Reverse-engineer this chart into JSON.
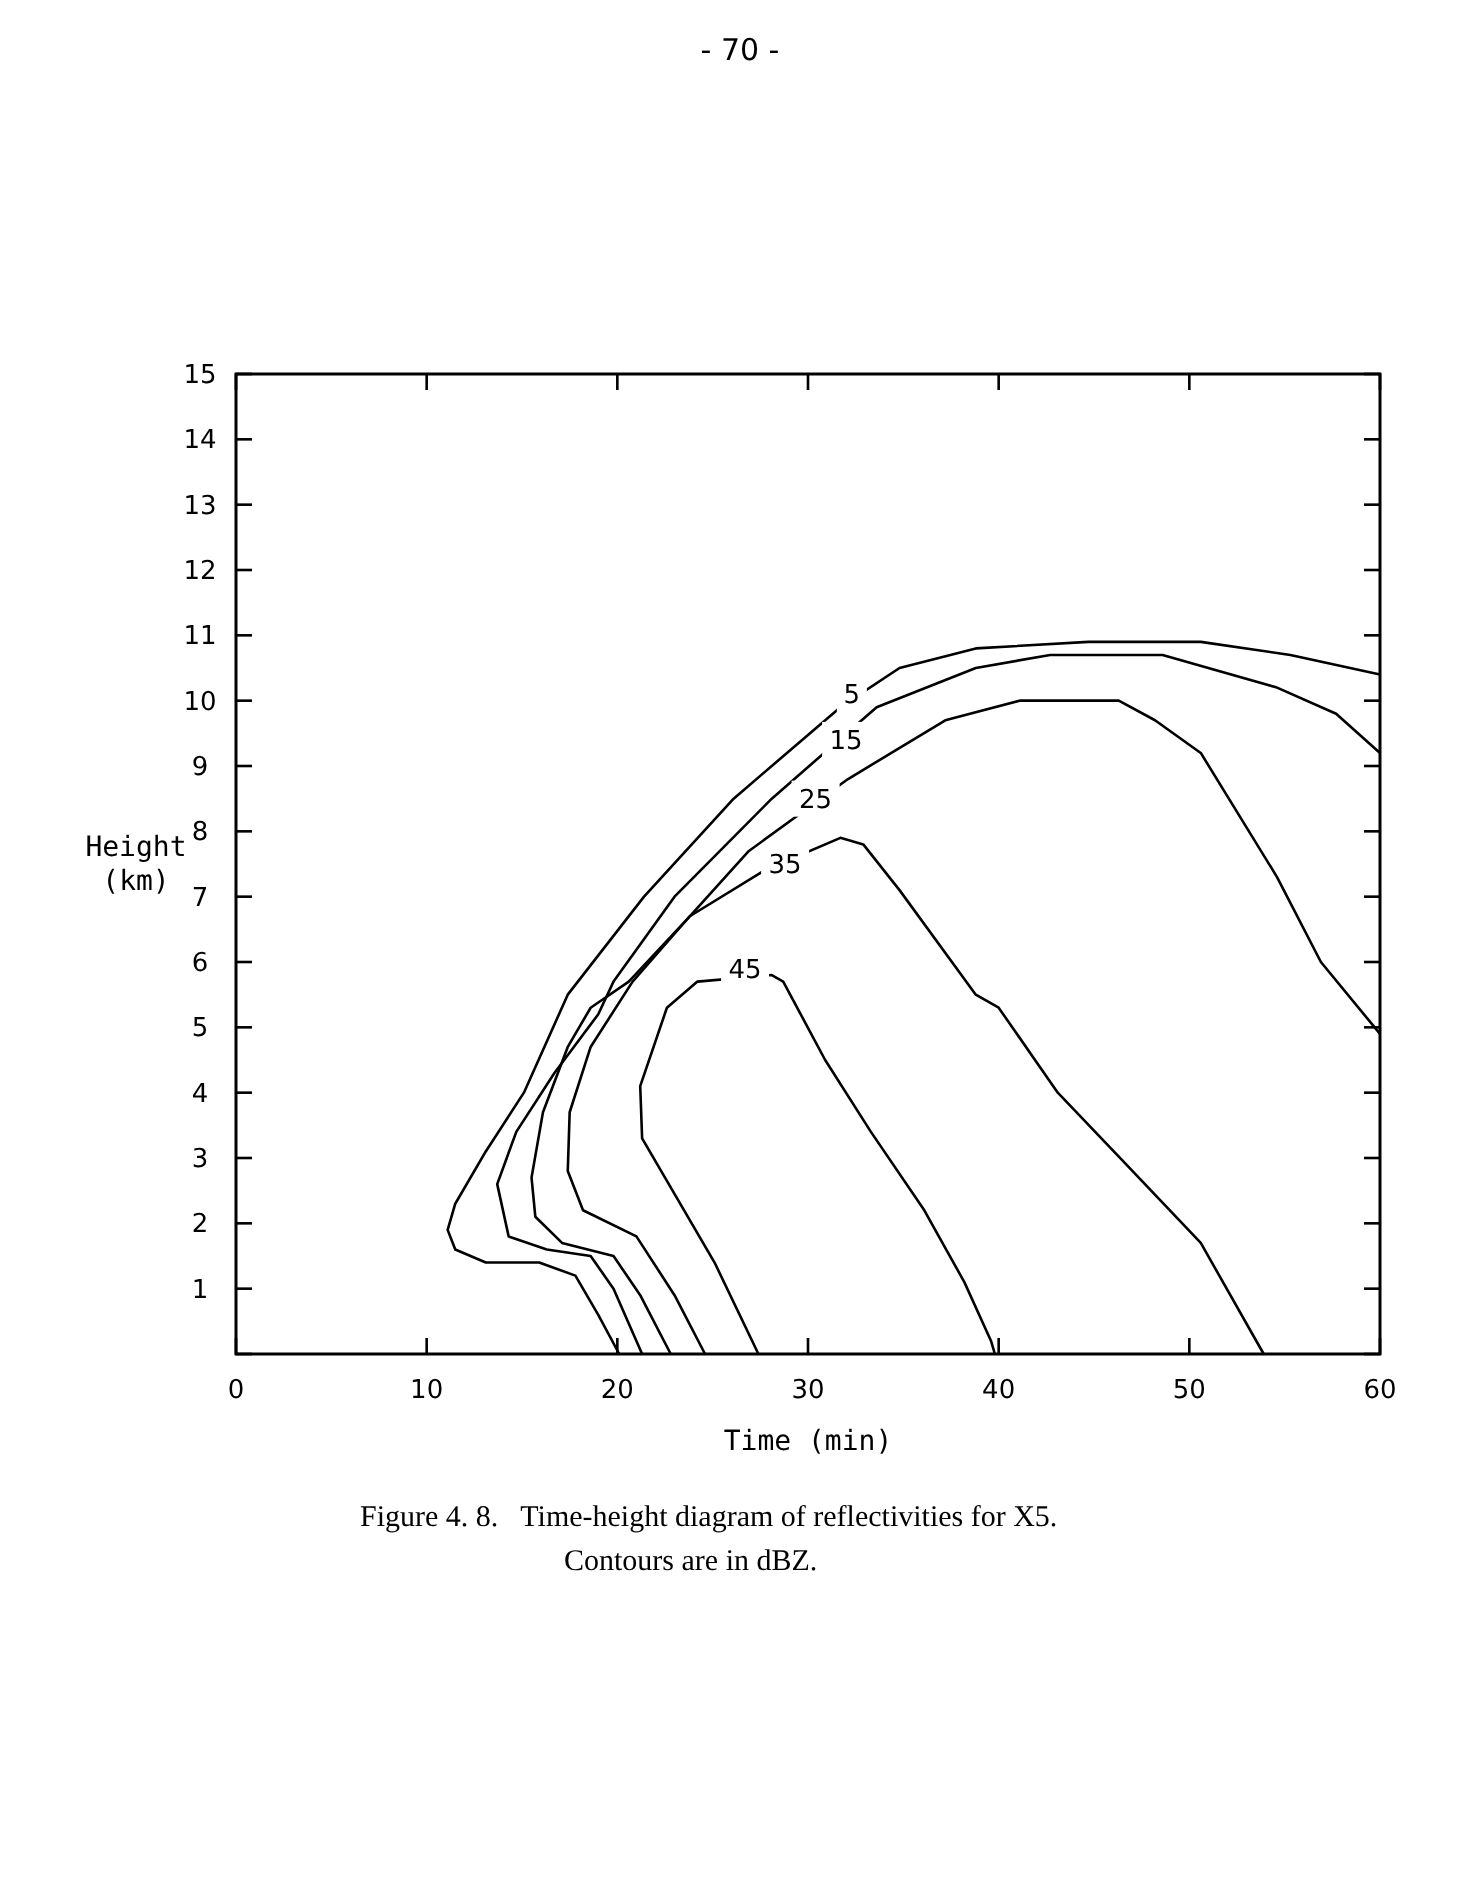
{
  "chart_data": {
    "type": "line",
    "xlabel": "Time (min)",
    "ylabel": "Height (km)",
    "xlim": [
      0,
      60
    ],
    "ylim": [
      0,
      15
    ],
    "xticks": [
      0,
      10,
      20,
      30,
      40,
      50,
      60
    ],
    "yticks": [
      {
        "value": 0,
        "label": null
      },
      1,
      2,
      3,
      4,
      5,
      6,
      7,
      8,
      9,
      10,
      11,
      12,
      13,
      14,
      15
    ],
    "grid": false,
    "marker": "none",
    "line_style": "solid",
    "series": [
      {
        "color": "#000000",
        "x": [
          20.1,
          19.0,
          17.8,
          15.9,
          13.1,
          11.5,
          11.1,
          11.5,
          13.1,
          15.1,
          17.4,
          21.4,
          26.1,
          31.7,
          34.8,
          38.8,
          44.7,
          50.6,
          55.3,
          60
        ],
        "values": [
          0,
          0.6,
          1.2,
          1.4,
          1.4,
          1.6,
          1.9,
          2.3,
          3.1,
          4.0,
          5.5,
          7.0,
          8.5,
          9.9,
          10.5,
          10.8,
          10.9,
          10.9,
          10.7,
          10.4
        ]
      },
      {
        "color": "#000000",
        "x": [
          21.3,
          19.8,
          18.6,
          16.3,
          14.3,
          13.7,
          14.7,
          16.7,
          19.0,
          19.8,
          23.0,
          28.1,
          33.6,
          38.8,
          42.7,
          48.6,
          54.6,
          57.7,
          60
        ],
        "values": [
          0,
          1.0,
          1.5,
          1.6,
          1.8,
          2.6,
          3.4,
          4.3,
          5.2,
          5.7,
          7.0,
          8.5,
          9.9,
          10.5,
          10.7,
          10.7,
          10.2,
          9.8,
          9.2
        ]
      },
      {
        "color": "#000000",
        "x": [
          22.8,
          21.2,
          19.8,
          17.1,
          15.7,
          15.5,
          16.1,
          17.4,
          18.6,
          20.6,
          23.8,
          26.9,
          32.1,
          37.2,
          41.1,
          46.3,
          48.2,
          50.6,
          54.6,
          56.9,
          60
        ],
        "values": [
          0,
          0.9,
          1.5,
          1.7,
          2.1,
          2.7,
          3.7,
          4.7,
          5.3,
          5.7,
          6.7,
          7.7,
          8.8,
          9.7,
          10.0,
          10.0,
          9.7,
          9.2,
          7.3,
          6.0,
          4.9
        ]
      },
      {
        "color": "#000000",
        "x": [
          24.6,
          23.0,
          21.0,
          18.2,
          17.4,
          17.5,
          18.6,
          20.8,
          23.8,
          27.7,
          31.7,
          32.9,
          34.8,
          38.8,
          40.0,
          43.1,
          46.7,
          50.6,
          53.9
        ],
        "values": [
          0,
          0.9,
          1.8,
          2.2,
          2.8,
          3.7,
          4.7,
          5.7,
          6.7,
          7.4,
          7.9,
          7.8,
          7.1,
          5.5,
          5.3,
          4.0,
          2.9,
          1.7,
          0
        ]
      },
      {
        "color": "#000000",
        "x": [
          27.4,
          25.1,
          21.3,
          21.2,
          22.6,
          24.2,
          28.1,
          28.7,
          30.9,
          33.3,
          36.1,
          38.2,
          39.6,
          39.8
        ],
        "values": [
          0,
          1.4,
          3.3,
          4.1,
          5.3,
          5.7,
          5.8,
          5.7,
          4.5,
          3.4,
          2.2,
          1.1,
          0.2,
          0
        ]
      }
    ],
    "annotations": [
      {
        "text": "5",
        "x": 32.3,
        "y": 10.1
      },
      {
        "text": "15",
        "x": 32.0,
        "y": 9.4
      },
      {
        "text": "25",
        "x": 30.4,
        "y": 8.5
      },
      {
        "text": "35",
        "x": 28.8,
        "y": 7.5
      },
      {
        "text": "45",
        "x": 26.7,
        "y": 5.9
      },
      "- 70 -",
      "Figure 4. 8.   Time-height diagram of reflectivities for X5.",
      "Contours are in dBZ."
    ]
  }
}
